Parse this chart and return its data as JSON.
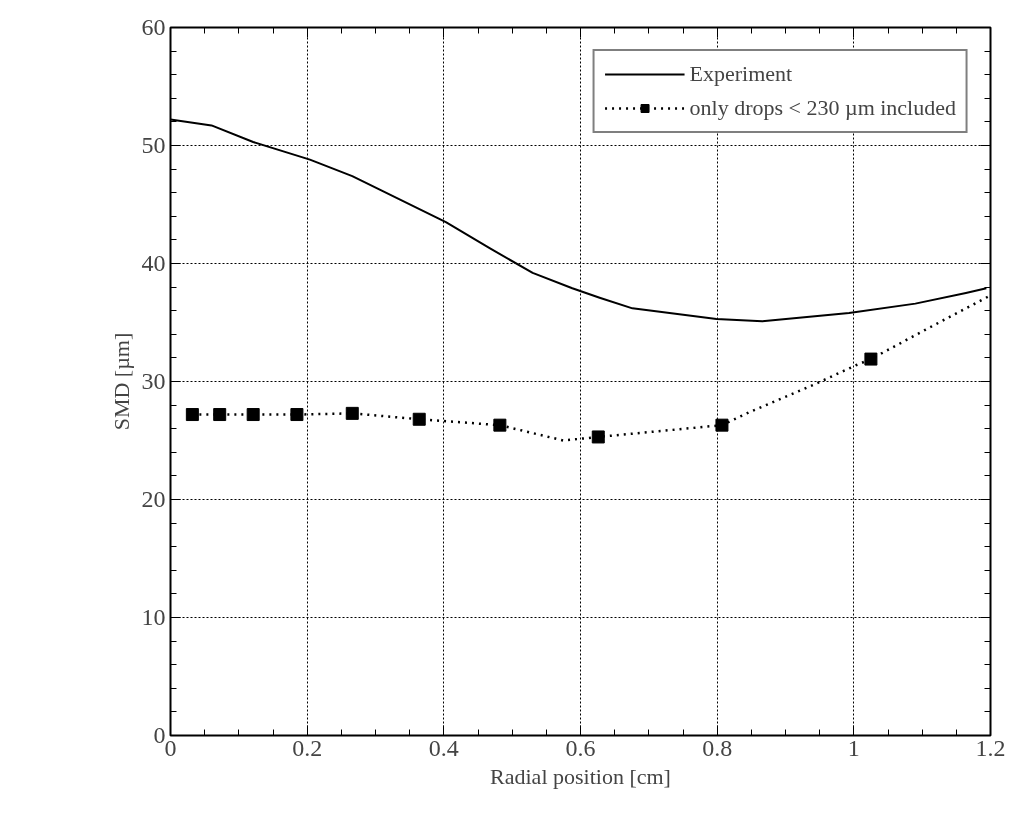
{
  "chart_data": {
    "type": "line",
    "xlabel": "Radial position [cm]",
    "ylabel": "SMD [µm]",
    "xlim": [
      0,
      1.2
    ],
    "ylim": [
      0,
      60
    ],
    "xticks": [
      0,
      0.2,
      0.4,
      0.6,
      0.8,
      {
        "value": 1,
        "label": "1"
      },
      1.2
    ],
    "yticks": [
      0,
      10,
      20,
      30,
      40,
      50,
      60
    ],
    "grid": true,
    "legend": "top right",
    "series": [
      {
        "name": "Experiment",
        "color": "#000000",
        "line_style": "solid",
        "marker": "none",
        "x": [
          0,
          0.06,
          0.121,
          0.204,
          0.266,
          0.403,
          0.467,
          0.53,
          0.588,
          0.628,
          0.676,
          0.799,
          0.866,
          0.993,
          1.09,
          1.164,
          1.194
        ],
        "values": [
          52.2,
          51.7,
          50.3,
          48.8,
          47.4,
          43.5,
          41.3,
          39.2,
          37.9,
          37.1,
          36.2,
          35.3,
          35.1,
          35.8,
          36.6,
          37.5,
          37.9
        ]
      },
      {
        "color": "#000000",
        "line_style": "dotted",
        "marker": "none",
        "x": [
          0.032,
          0.072,
          0.121,
          0.185,
          0.266,
          0.364,
          0.482,
          0.575,
          0.626,
          0.807,
          0.847,
          0.944,
          1.004,
          1.025,
          1.102,
          1.164,
          1.2
        ],
        "values": [
          27.2,
          27.2,
          27.2,
          27.2,
          27.3,
          26.8,
          26.3,
          25.0,
          25.3,
          26.3,
          27.4,
          29.8,
          31.4,
          31.9,
          34.3,
          36.2,
          37.3
        ]
      },
      {
        "name": "only drops < 230 µm included",
        "type": "scatter",
        "color": "#000000",
        "marker": "square",
        "x": [
          0.032,
          0.072,
          0.121,
          0.185,
          0.266,
          0.364,
          0.482,
          0.626,
          0.807,
          1.025
        ],
        "values": [
          27.2,
          27.2,
          27.2,
          27.2,
          27.3,
          26.8,
          26.3,
          25.3,
          26.3,
          31.9
        ]
      }
    ]
  }
}
